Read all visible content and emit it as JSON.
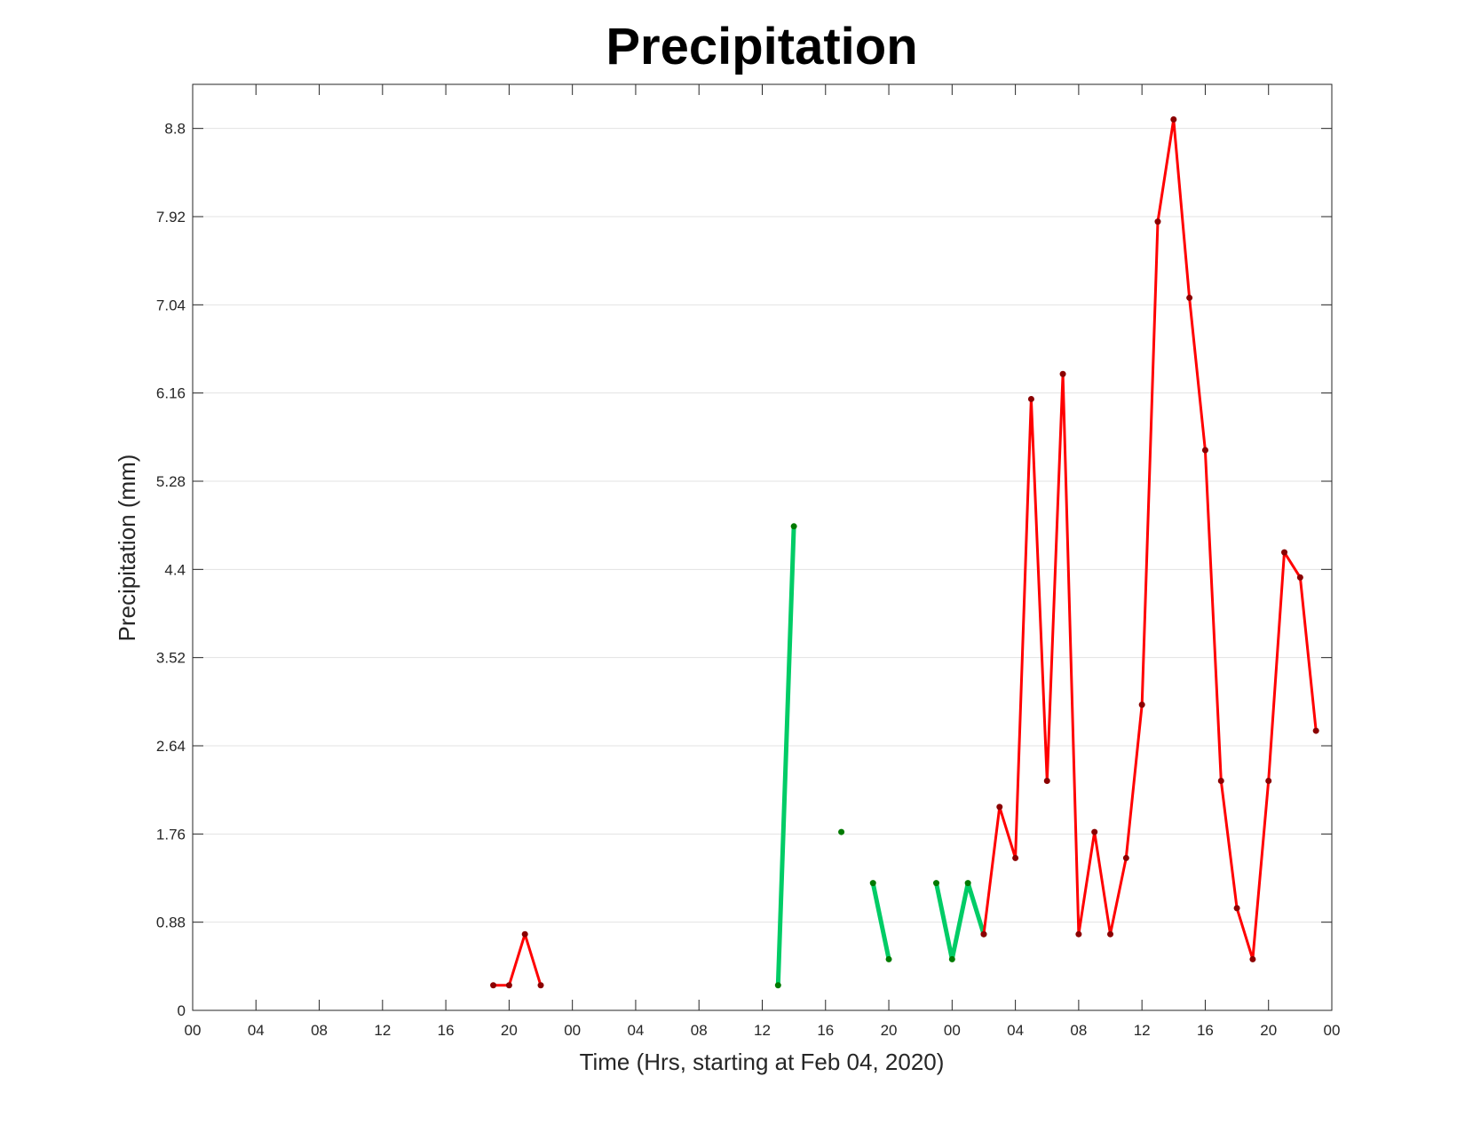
{
  "chart_data": {
    "type": "line",
    "title": "Precipitation",
    "xlabel": "Time (Hrs, starting at Feb 04, 2020)",
    "ylabel": "Precipitation (mm)",
    "ylim": [
      0,
      9.24
    ],
    "xlim_hours": [
      0,
      72
    ],
    "x_unit": "hours since Feb 04, 2020 00:00",
    "x_ticks": [
      0,
      4,
      8,
      12,
      16,
      20,
      24,
      28,
      32,
      36,
      40,
      44,
      48,
      52,
      56,
      60,
      64,
      68,
      72
    ],
    "x_tick_labels": [
      "00",
      "04",
      "08",
      "12",
      "16",
      "20",
      "00",
      "04",
      "08",
      "12",
      "16",
      "20",
      "00",
      "04",
      "08",
      "12",
      "16",
      "20",
      "00"
    ],
    "y_ticks": [
      0,
      0.88,
      1.76,
      2.64,
      3.52,
      4.4,
      5.28,
      6.16,
      7.04,
      7.92,
      8.8
    ],
    "y_tick_labels": [
      "0",
      "0.88",
      "1.76",
      "2.64",
      "3.52",
      "4.4",
      "5.28",
      "6.16",
      "7.04",
      "7.92",
      "8.8"
    ],
    "grid": "horizontal",
    "colors": {
      "red_line": "#ff0000",
      "red_marker": "#8b0000",
      "green_line": "#00cc66",
      "green_marker": "#007a00",
      "grid": "#e3e3e3",
      "axis": "#262626"
    },
    "series": [
      {
        "color": "red",
        "segments": [
          [
            [
              19,
              0.25
            ],
            [
              20,
              0.25
            ],
            [
              21,
              0.76
            ],
            [
              22,
              0.25
            ]
          ],
          [
            [
              50,
              0.76
            ],
            [
              51,
              2.03
            ],
            [
              52,
              1.52
            ],
            [
              53,
              6.1
            ],
            [
              54,
              2.29
            ],
            [
              55,
              6.35
            ],
            [
              56,
              0.76
            ],
            [
              57,
              1.78
            ],
            [
              58,
              0.76
            ],
            [
              59,
              1.52
            ],
            [
              60,
              3.05
            ],
            [
              61,
              7.87
            ],
            [
              62,
              8.89
            ],
            [
              63,
              7.11
            ],
            [
              64,
              5.59
            ],
            [
              65,
              2.29
            ],
            [
              66,
              1.02
            ],
            [
              67,
              0.51
            ],
            [
              68,
              2.29
            ],
            [
              69,
              4.57
            ],
            [
              70,
              4.32
            ],
            [
              71,
              2.79
            ]
          ]
        ]
      },
      {
        "color": "green",
        "segments": [
          [
            [
              37,
              0.25
            ],
            [
              38,
              4.83
            ]
          ],
          [
            [
              41,
              1.78
            ]
          ],
          [
            [
              43,
              1.27
            ],
            [
              44,
              0.51
            ]
          ],
          [
            [
              47,
              1.27
            ],
            [
              48,
              0.51
            ],
            [
              49,
              1.27
            ],
            [
              50,
              0.76
            ]
          ]
        ]
      }
    ]
  }
}
